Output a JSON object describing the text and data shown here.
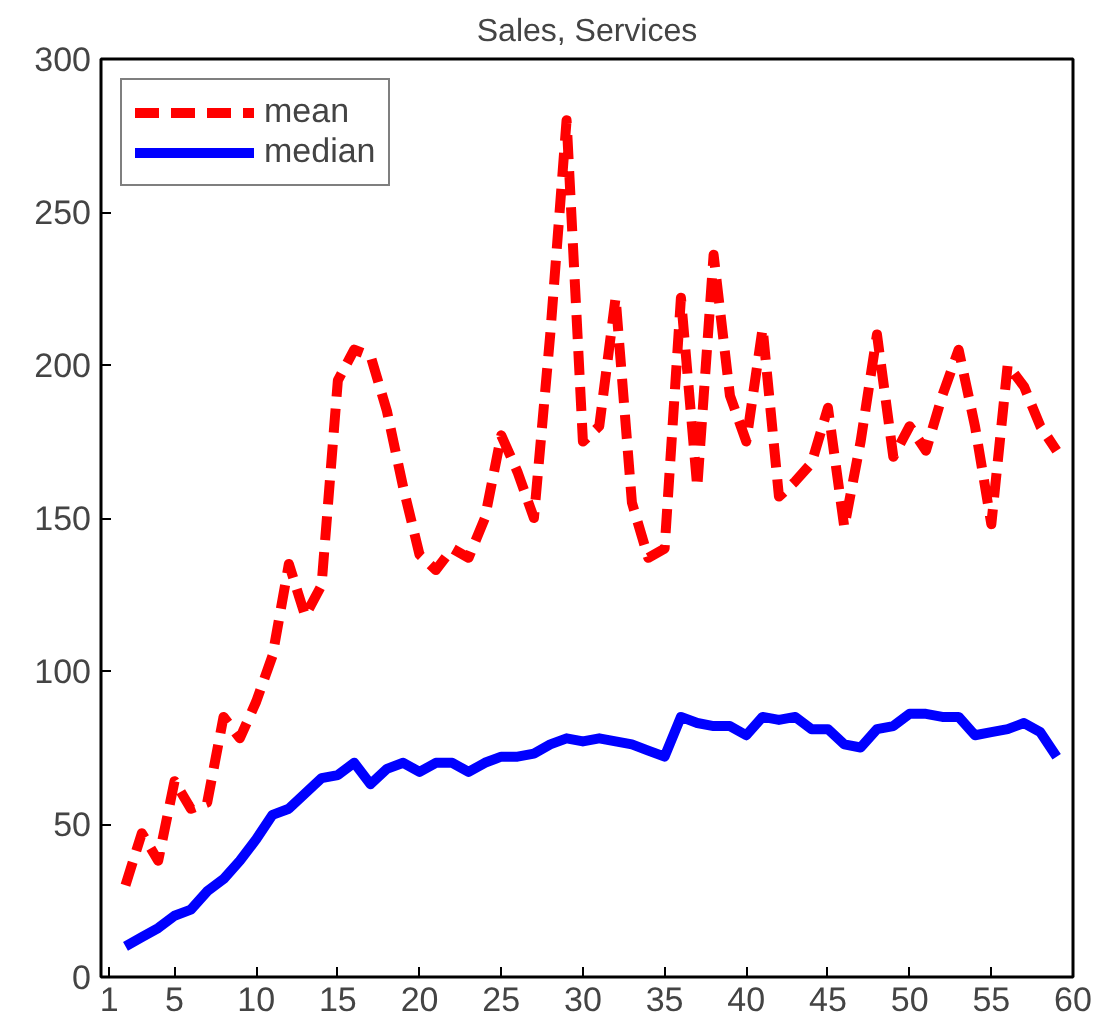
{
  "chart_data": {
    "type": "line",
    "title": "Sales, Services",
    "x": [
      2,
      3,
      4,
      5,
      6,
      7,
      8,
      9,
      10,
      11,
      12,
      13,
      14,
      15,
      16,
      17,
      18,
      19,
      20,
      21,
      22,
      23,
      24,
      25,
      26,
      27,
      28,
      29,
      30,
      31,
      32,
      33,
      34,
      35,
      36,
      37,
      38,
      39,
      40,
      41,
      42,
      43,
      44,
      45,
      46,
      47,
      48,
      49,
      50,
      51,
      52,
      53,
      54,
      55,
      56,
      57,
      58,
      59
    ],
    "series": [
      {
        "name": "mean",
        "color": "#ff0000",
        "line_style": "dashed",
        "values": [
          30,
          47,
          38,
          64,
          55,
          57,
          85,
          78,
          90,
          105,
          135,
          118,
          128,
          195,
          205,
          203,
          185,
          160,
          138,
          133,
          140,
          137,
          150,
          177,
          165,
          150,
          210,
          280,
          175,
          180,
          222,
          155,
          137,
          140,
          222,
          160,
          236,
          190,
          175,
          212,
          157,
          162,
          168,
          186,
          147,
          175,
          210,
          170,
          180,
          172,
          190,
          205,
          180,
          148,
          200,
          193,
          180,
          172
        ]
      },
      {
        "name": "median",
        "color": "#0000ff",
        "line_style": "solid",
        "values": [
          10,
          13,
          16,
          20,
          22,
          28,
          32,
          38,
          45,
          53,
          55,
          60,
          65,
          66,
          70,
          63,
          68,
          70,
          67,
          70,
          70,
          67,
          70,
          72,
          72,
          73,
          76,
          78,
          77,
          78,
          77,
          76,
          74,
          72,
          85,
          83,
          82,
          82,
          79,
          85,
          84,
          85,
          81,
          81,
          76,
          75,
          81,
          82,
          86,
          86,
          85,
          85,
          79,
          80,
          81,
          83,
          80,
          72
        ]
      }
    ],
    "xlim": [
      0.5,
      60
    ],
    "ylim": [
      0,
      300
    ],
    "xticks": [
      1,
      5,
      10,
      15,
      20,
      25,
      30,
      35,
      40,
      45,
      50,
      55,
      60
    ],
    "yticks": [
      0,
      50,
      100,
      150,
      200,
      250,
      300
    ],
    "grid": false,
    "legend": "top left"
  }
}
